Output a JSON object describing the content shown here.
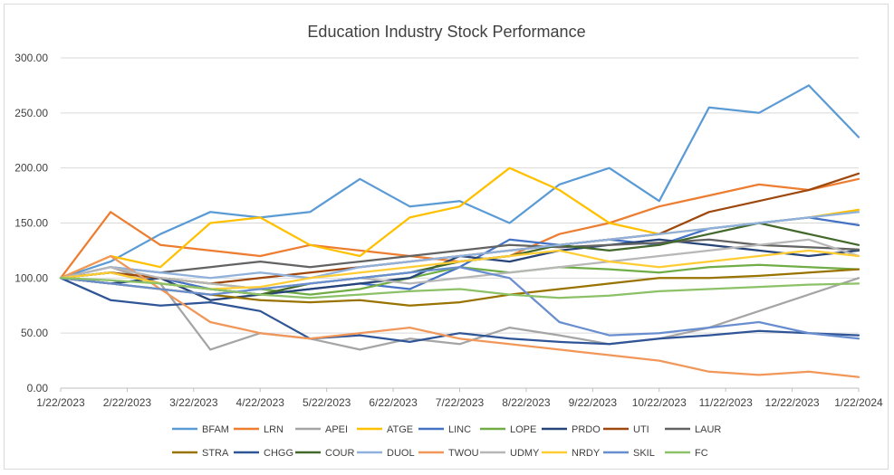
{
  "chart_data": {
    "type": "line",
    "title": "Education Industry Stock Performance",
    "xlabel": "",
    "ylabel": "",
    "ylim": [
      0,
      300
    ],
    "yticks": [
      "0.00",
      "50.00",
      "100.00",
      "150.00",
      "200.00",
      "250.00",
      "300.00"
    ],
    "xticks": [
      "1/22/2023",
      "2/22/2023",
      "3/22/2023",
      "4/22/2023",
      "5/22/2023",
      "6/22/2023",
      "7/22/2023",
      "8/22/2023",
      "9/22/2023",
      "10/22/2023",
      "11/22/2023",
      "12/22/2023",
      "1/22/2024"
    ],
    "grid": "horizontal",
    "legend_position": "bottom",
    "series": [
      {
        "name": "BFAM",
        "color": "#5b9bd5",
        "values": [
          100,
          115,
          140,
          160,
          155,
          160,
          190,
          165,
          170,
          150,
          185,
          200,
          170,
          255,
          250,
          275,
          228
        ]
      },
      {
        "name": "LRN",
        "color": "#ed7d31",
        "values": [
          100,
          160,
          130,
          125,
          120,
          130,
          125,
          120,
          115,
          120,
          140,
          150,
          165,
          175,
          185,
          180,
          190
        ]
      },
      {
        "name": "APEI",
        "color": "#a5a5a5",
        "values": [
          100,
          110,
          95,
          35,
          50,
          45,
          35,
          45,
          40,
          55,
          48,
          40,
          45,
          55,
          70,
          85,
          100
        ]
      },
      {
        "name": "ATGE",
        "color": "#ffc000",
        "values": [
          100,
          120,
          110,
          150,
          155,
          130,
          120,
          155,
          165,
          200,
          180,
          150,
          140,
          145,
          150,
          155,
          162
        ]
      },
      {
        "name": "LINC",
        "color": "#4472c4",
        "values": [
          100,
          95,
          100,
          90,
          85,
          90,
          95,
          90,
          110,
          135,
          130,
          135,
          130,
          145,
          150,
          155,
          148
        ]
      },
      {
        "name": "LOPE",
        "color": "#70ad47",
        "values": [
          100,
          105,
          100,
          95,
          90,
          85,
          90,
          100,
          110,
          105,
          110,
          108,
          105,
          110,
          112,
          110,
          108
        ]
      },
      {
        "name": "PRDO",
        "color": "#264478",
        "values": [
          100,
          95,
          100,
          80,
          85,
          90,
          95,
          100,
          120,
          115,
          125,
          130,
          135,
          130,
          125,
          120,
          125
        ]
      },
      {
        "name": "UTI",
        "color": "#9e480e",
        "values": [
          100,
          105,
          100,
          95,
          100,
          105,
          110,
          115,
          120,
          125,
          130,
          135,
          140,
          160,
          170,
          180,
          195
        ]
      },
      {
        "name": "LAUR",
        "color": "#636363",
        "values": [
          100,
          110,
          105,
          110,
          115,
          110,
          115,
          120,
          125,
          130,
          128,
          130,
          132,
          135,
          130,
          128,
          126
        ]
      },
      {
        "name": "STRA",
        "color": "#997300",
        "values": [
          100,
          95,
          90,
          85,
          80,
          78,
          80,
          75,
          78,
          85,
          90,
          95,
          100,
          100,
          102,
          105,
          108
        ]
      },
      {
        "name": "CHGG",
        "color": "#2f5597",
        "values": [
          100,
          80,
          75,
          78,
          70,
          45,
          48,
          42,
          50,
          45,
          42,
          40,
          45,
          48,
          52,
          50,
          48
        ]
      },
      {
        "name": "COUR",
        "color": "#43682b",
        "values": [
          100,
          105,
          95,
          90,
          85,
          95,
          100,
          105,
          115,
          120,
          130,
          125,
          130,
          140,
          150,
          140,
          130
        ]
      },
      {
        "name": "DUOL",
        "color": "#8fb1dc",
        "values": [
          100,
          110,
          105,
          100,
          105,
          100,
          110,
          115,
          120,
          125,
          130,
          135,
          140,
          145,
          150,
          155,
          160
        ]
      },
      {
        "name": "TWOU",
        "color": "#f1975a",
        "values": [
          100,
          120,
          90,
          60,
          50,
          45,
          50,
          55,
          45,
          40,
          35,
          30,
          25,
          15,
          12,
          15,
          10
        ]
      },
      {
        "name": "UDMY",
        "color": "#b7b7b7",
        "values": [
          100,
          110,
          100,
          95,
          90,
          95,
          100,
          95,
          100,
          105,
          110,
          115,
          120,
          125,
          130,
          135,
          120
        ]
      },
      {
        "name": "NRDY",
        "color": "#ffcd33",
        "values": [
          100,
          105,
          95,
          90,
          92,
          100,
          105,
          110,
          115,
          120,
          125,
          115,
          110,
          115,
          120,
          125,
          120
        ]
      },
      {
        "name": "SKIL",
        "color": "#698ed0",
        "values": [
          100,
          95,
          90,
          85,
          90,
          95,
          100,
          105,
          110,
          100,
          60,
          48,
          50,
          55,
          60,
          50,
          45
        ]
      },
      {
        "name": "FC",
        "color": "#8cc168",
        "values": [
          100,
          98,
          95,
          90,
          85,
          82,
          85,
          88,
          90,
          85,
          82,
          84,
          88,
          90,
          92,
          94,
          95
        ]
      }
    ]
  }
}
